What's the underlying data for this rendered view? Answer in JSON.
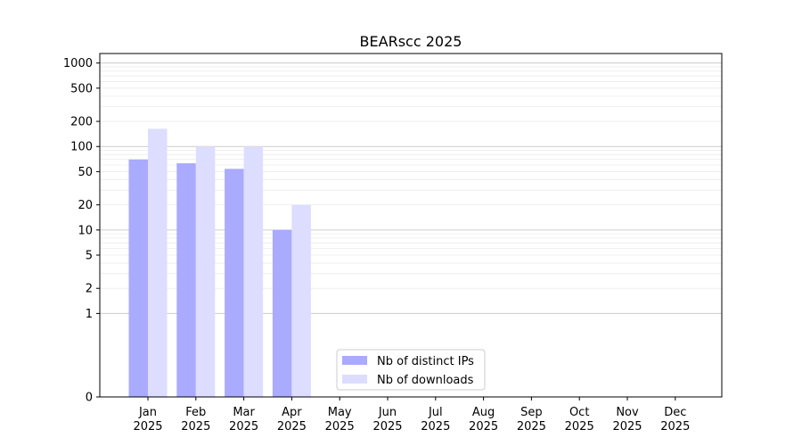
{
  "chart_data": {
    "type": "bar",
    "title": "BEARscc 2025",
    "categories": [
      "Jan\n2025",
      "Feb\n2025",
      "Mar\n2025",
      "Apr\n2025",
      "May\n2025",
      "Jun\n2025",
      "Jul\n2025",
      "Aug\n2025",
      "Sep\n2025",
      "Oct\n2025",
      "Nov\n2025",
      "Dec\n2025"
    ],
    "series": [
      {
        "name": "Nb of distinct IPs",
        "color": "#aaaaff",
        "values": [
          70,
          63,
          54,
          10,
          0,
          0,
          0,
          0,
          0,
          0,
          0,
          0
        ]
      },
      {
        "name": "Nb of downloads",
        "color": "#ddddff",
        "values": [
          163,
          100,
          100,
          20,
          0,
          0,
          0,
          0,
          0,
          0,
          0,
          0
        ]
      }
    ],
    "yscale": "symlog",
    "ylim": [
      0,
      1300
    ],
    "yticks": [
      0,
      1,
      2,
      5,
      10,
      20,
      50,
      100,
      200,
      500,
      1000
    ],
    "grid": true,
    "legend": "bottom-center",
    "xlabel": "",
    "ylabel": ""
  }
}
